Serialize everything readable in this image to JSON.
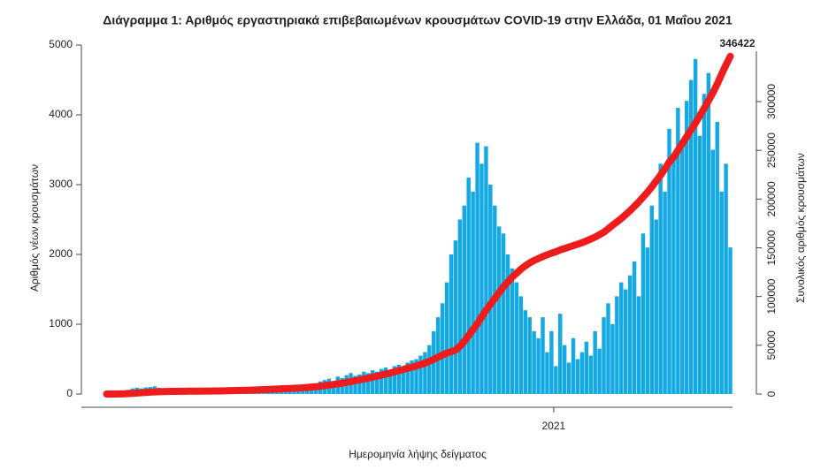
{
  "chart_data": {
    "type": "bar",
    "title": "Διάγραμμα 1: Αριθμός εργαστηριακά επιβεβαιωμένων κρουσμάτων COVID-19 στην Ελλάδα, 01 Μαΐου 2021",
    "x_label": "Ημερομηνία λήψης δείγματος",
    "y_label": "Αριθμός νέων κρουσμάτων",
    "y2_label": "Συνολικός αριθμός κρουσμάτων",
    "categories": [
      null,
      null,
      null,
      null,
      null,
      null,
      null,
      null,
      null,
      null,
      null,
      null,
      null,
      null,
      null,
      null,
      null,
      null,
      null,
      null,
      null,
      null,
      null,
      null,
      null,
      null,
      null,
      null,
      null,
      null,
      null,
      null,
      null,
      null,
      null,
      null,
      null,
      null,
      null,
      null,
      null,
      null,
      null,
      null,
      null,
      null,
      null,
      null,
      null,
      null,
      null,
      null,
      null,
      null,
      null,
      null,
      null,
      null,
      null,
      null,
      null,
      null,
      null,
      null,
      null,
      null,
      null,
      null,
      null,
      null,
      null,
      null,
      null,
      null,
      null,
      null,
      null,
      null,
      null,
      null,
      null,
      null,
      null,
      null,
      null,
      null,
      null,
      null,
      null,
      null,
      null,
      null,
      null,
      null,
      null,
      null,
      null,
      null,
      null,
      null,
      null,
      null,
      null,
      "2021",
      null,
      null,
      null,
      null,
      null,
      null,
      null,
      null,
      null,
      null,
      null,
      null,
      null,
      null,
      null,
      null,
      null,
      null,
      null,
      null,
      null,
      null,
      null,
      null,
      null,
      null,
      null,
      null,
      null,
      null,
      null,
      null,
      null,
      null,
      null,
      null,
      null,
      null,
      null,
      null
    ],
    "ylim": [
      0,
      5000
    ],
    "yticks": [
      0,
      1000,
      2000,
      3000,
      4000,
      5000
    ],
    "y2lim": [
      0,
      358000
    ],
    "y2ticks": [
      0,
      50000,
      100000,
      150000,
      200000,
      250000,
      300000
    ],
    "series": [
      {
        "type": "bar",
        "color": "#14a9e3",
        "values": [
          0,
          3,
          10,
          20,
          40,
          60,
          80,
          90,
          80,
          95,
          100,
          110,
          90,
          70,
          60,
          40,
          20,
          15,
          10,
          12,
          10,
          8,
          12,
          10,
          6,
          10,
          15,
          12,
          15,
          20,
          15,
          20,
          25,
          20,
          30,
          25,
          20,
          30,
          25,
          30,
          30,
          35,
          40,
          50,
          60,
          80,
          100,
          120,
          150,
          180,
          200,
          220,
          180,
          250,
          230,
          270,
          300,
          260,
          280,
          320,
          300,
          340,
          320,
          360,
          380,
          330,
          400,
          420,
          380,
          450,
          480,
          500,
          550,
          600,
          700,
          900,
          1100,
          1300,
          1600,
          2000,
          2200,
          2500,
          2700,
          3100,
          2900,
          3600,
          3300,
          3550,
          3000,
          2700,
          2400,
          2300,
          2000,
          1800,
          1600,
          1400,
          1200,
          1100,
          900,
          800,
          1100,
          600,
          900,
          400,
          1150,
          700,
          450,
          800,
          500,
          600,
          750,
          550,
          900,
          650,
          1100,
          1300,
          1000,
          1400,
          1600,
          1500,
          1700,
          1900,
          1400,
          2300,
          2100,
          2700,
          2500,
          3300,
          2900,
          3800,
          3400,
          4100,
          3600,
          4200,
          4500,
          4800,
          3700,
          4300,
          4600,
          3500,
          3900,
          2900,
          3300,
          2100
        ]
      },
      {
        "type": "line",
        "axis": "y2",
        "color": "#ee1c1c",
        "values": [
          0,
          10,
          40,
          100,
          250,
          450,
          700,
          1000,
          1300,
          1600,
          1900,
          2200,
          2400,
          2550,
          2650,
          2700,
          2750,
          2800,
          2850,
          2900,
          2930,
          2960,
          3000,
          3050,
          3100,
          3150,
          3200,
          3300,
          3400,
          3500,
          3600,
          3700,
          3800,
          3950,
          4100,
          4300,
          4500,
          4700,
          4900,
          5100,
          5300,
          5500,
          5700,
          5900,
          6100,
          6400,
          6700,
          7100,
          7500,
          8000,
          8600,
          9200,
          9800,
          10500,
          11200,
          12000,
          12800,
          13600,
          14500,
          15400,
          16300,
          17300,
          18300,
          19400,
          20500,
          21500,
          22700,
          24000,
          25200,
          26500,
          27500,
          28800,
          30200,
          31800,
          33600,
          35600,
          37800,
          40000,
          42000,
          43500,
          45000,
          49000,
          54000,
          60000,
          66000,
          72000,
          79000,
          86000,
          92000,
          98000,
          104000,
          110000,
          115000,
          120000,
          124000,
          128000,
          131500,
          134500,
          137000,
          139000,
          141000,
          142800,
          144500,
          146000,
          147800,
          149300,
          150800,
          152200,
          153700,
          155200,
          157000,
          159000,
          161000,
          163500,
          166000,
          169500,
          173150,
          176500,
          180000,
          184000,
          188000,
          192500,
          197000,
          202000,
          207000,
          212500,
          218500,
          224500,
          231000,
          238000,
          243000,
          250000,
          257000,
          264000,
          271000,
          278000,
          285500,
          293000,
          301000,
          309000,
          318000,
          328000,
          337500,
          346422
        ],
        "value_labels": [
          null,
          null,
          null,
          null,
          null,
          null,
          null,
          null,
          null,
          null,
          null,
          null,
          null,
          null,
          null,
          null,
          null,
          null,
          null,
          null,
          null,
          null,
          null,
          null,
          null,
          null,
          null,
          null,
          null,
          null,
          null,
          null,
          null,
          null,
          null,
          null,
          null,
          null,
          null,
          null,
          null,
          null,
          null,
          null,
          null,
          null,
          null,
          null,
          null,
          null,
          null,
          null,
          null,
          null,
          null,
          null,
          null,
          null,
          null,
          null,
          null,
          null,
          null,
          null,
          null,
          null,
          null,
          null,
          null,
          null,
          null,
          null,
          null,
          null,
          null,
          null,
          null,
          null,
          null,
          null,
          null,
          null,
          null,
          null,
          null,
          null,
          null,
          null,
          null,
          null,
          null,
          null,
          null,
          null,
          null,
          null,
          null,
          null,
          null,
          null,
          null,
          null,
          null,
          null,
          null,
          null,
          null,
          null,
          null,
          null,
          null,
          null,
          null,
          null,
          null,
          null,
          null,
          null,
          null,
          null,
          null,
          null,
          null,
          null,
          null,
          null,
          null,
          null,
          null,
          null,
          null,
          null,
          null,
          null,
          null,
          null,
          null,
          null,
          null,
          null,
          null,
          null,
          null,
          "346422"
        ]
      }
    ]
  }
}
